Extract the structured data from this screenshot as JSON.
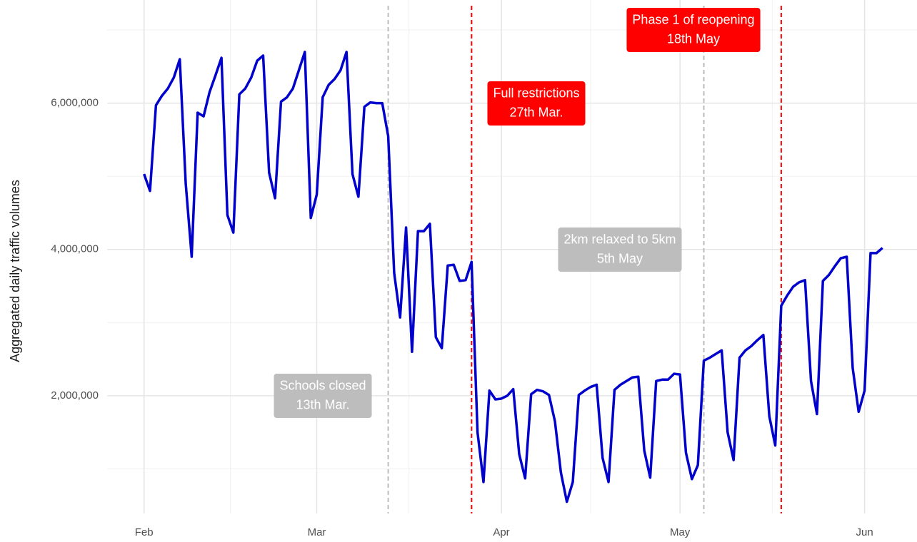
{
  "chart_data": {
    "type": "line",
    "y_label": "Aggregated daily traffic volumes",
    "x": [
      0,
      1,
      2,
      3,
      4,
      5,
      6,
      7,
      8,
      9,
      10,
      11,
      12,
      13,
      14,
      15,
      16,
      17,
      18,
      19,
      20,
      21,
      22,
      23,
      24,
      25,
      26,
      27,
      28,
      29,
      30,
      31,
      32,
      33,
      34,
      35,
      36,
      37,
      38,
      39,
      40,
      41,
      42,
      43,
      44,
      45,
      46,
      47,
      48,
      49,
      50,
      51,
      52,
      53,
      54,
      55,
      56,
      57,
      58,
      59,
      60,
      61,
      62,
      63,
      64,
      65,
      66,
      67,
      68,
      69,
      70,
      71,
      72,
      73,
      74,
      75,
      76,
      77,
      78,
      79,
      80,
      81,
      82,
      83,
      84,
      85,
      86,
      87,
      88,
      89,
      90,
      91,
      92,
      93,
      94,
      95,
      96,
      97,
      98,
      99,
      100,
      101,
      102,
      103,
      104,
      105,
      106,
      107,
      108,
      109,
      110,
      111,
      112,
      113,
      114,
      115,
      116,
      117,
      118,
      119,
      120,
      121,
      122,
      123,
      124
    ],
    "series": [
      {
        "color": "#0000cc",
        "values": [
          5030000,
          4800000,
          5970000,
          6100000,
          6200000,
          6350000,
          6600000,
          4900000,
          3900000,
          5870000,
          5820000,
          6150000,
          6380000,
          6620000,
          4470000,
          4230000,
          6120000,
          6200000,
          6350000,
          6580000,
          6650000,
          5050000,
          4700000,
          6020000,
          6080000,
          6200000,
          6450000,
          6700000,
          4430000,
          4750000,
          6080000,
          6250000,
          6330000,
          6450000,
          6700000,
          5030000,
          4720000,
          5950000,
          6010000,
          6000000,
          6000000,
          5550000,
          3680000,
          3070000,
          4300000,
          2600000,
          4250000,
          4250000,
          4350000,
          2800000,
          2650000,
          3780000,
          3790000,
          3570000,
          3580000,
          3830000,
          1500000,
          820000,
          2070000,
          1950000,
          1960000,
          2000000,
          2090000,
          1200000,
          870000,
          2020000,
          2080000,
          2060000,
          2010000,
          1650000,
          950000,
          550000,
          820000,
          2010000,
          2070000,
          2120000,
          2150000,
          1150000,
          820000,
          2080000,
          2150000,
          2200000,
          2250000,
          2260000,
          1250000,
          880000,
          2200000,
          2220000,
          2220000,
          2300000,
          2290000,
          1220000,
          860000,
          1050000,
          2480000,
          2520000,
          2570000,
          2620000,
          1500000,
          1120000,
          2520000,
          2620000,
          2680000,
          2760000,
          2830000,
          1720000,
          1320000,
          3230000,
          3370000,
          3490000,
          3550000,
          3580000,
          2200000,
          1750000,
          3570000,
          3650000,
          3770000,
          3880000,
          3900000,
          2380000,
          1780000,
          2070000,
          3950000,
          3950000,
          4020000
        ]
      }
    ],
    "xlim": [
      -6.2,
      129.8
    ],
    "xticks": [
      {
        "value": 0,
        "label": "Feb"
      },
      {
        "value": 29,
        "label": "Mar"
      },
      {
        "value": 60,
        "label": "Apr"
      },
      {
        "value": 90,
        "label": "May"
      },
      {
        "value": 121,
        "label": "Jun"
      }
    ],
    "xminor": [
      14.5,
      44.5,
      75,
      105.5
    ],
    "ylim": [
      390000,
      7410000
    ],
    "yticks": [
      {
        "value": 2000000,
        "label": "2,000,000"
      },
      {
        "value": 4000000,
        "label": "4,000,000"
      },
      {
        "value": 6000000,
        "label": "6,000,000"
      }
    ],
    "yminor": [
      1000000,
      3000000,
      5000000,
      7000000
    ],
    "grid": true,
    "annotations": [
      {
        "x": 41,
        "color": "#bdbdbd",
        "lines": [
          "Schools closed",
          "13th Mar."
        ]
      },
      {
        "x": 55,
        "color": "#ff0000",
        "lines": [
          "Full restrictions",
          "27th Mar."
        ]
      },
      {
        "x": 94,
        "color": "#bdbdbd",
        "lines": [
          "2km relaxed to 5km",
          "5th May"
        ]
      },
      {
        "x": 107,
        "color": "#ff0000",
        "lines": [
          "Phase 1 of reopening",
          "18th May"
        ]
      }
    ]
  }
}
